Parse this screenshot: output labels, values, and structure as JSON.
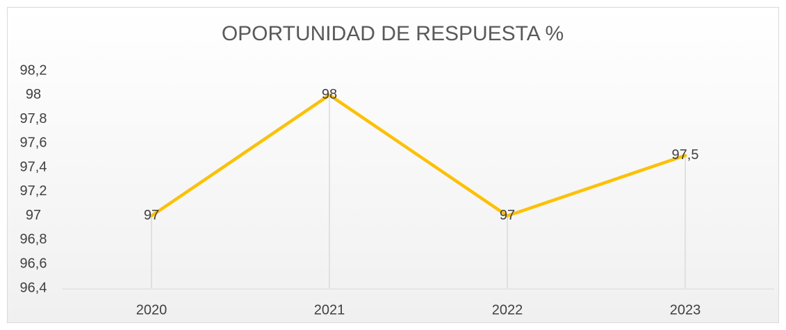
{
  "chart_data": {
    "type": "line",
    "title": "OPORTUNIDAD DE RESPUESTA %",
    "categories": [
      "2020",
      "2021",
      "2022",
      "2023"
    ],
    "values": [
      97,
      98,
      97,
      97.5
    ],
    "value_labels": [
      "97",
      "98",
      "97",
      "97,5"
    ],
    "color": "#ffc000",
    "ylim": [
      96.4,
      98.2
    ],
    "yticks": [
      {
        "value": 96.4,
        "label": "96,4"
      },
      {
        "value": 96.6,
        "label": "96,6"
      },
      {
        "value": 96.8,
        "label": "96,8"
      },
      97,
      {
        "value": 97.2,
        "label": "97,2"
      },
      {
        "value": 97.4,
        "label": "97,4"
      },
      {
        "value": 97.6,
        "label": "97,6"
      },
      {
        "value": 97.8,
        "label": "97,8"
      },
      98,
      {
        "value": 98.2,
        "label": "98,2"
      }
    ],
    "drop_lines": true
  }
}
